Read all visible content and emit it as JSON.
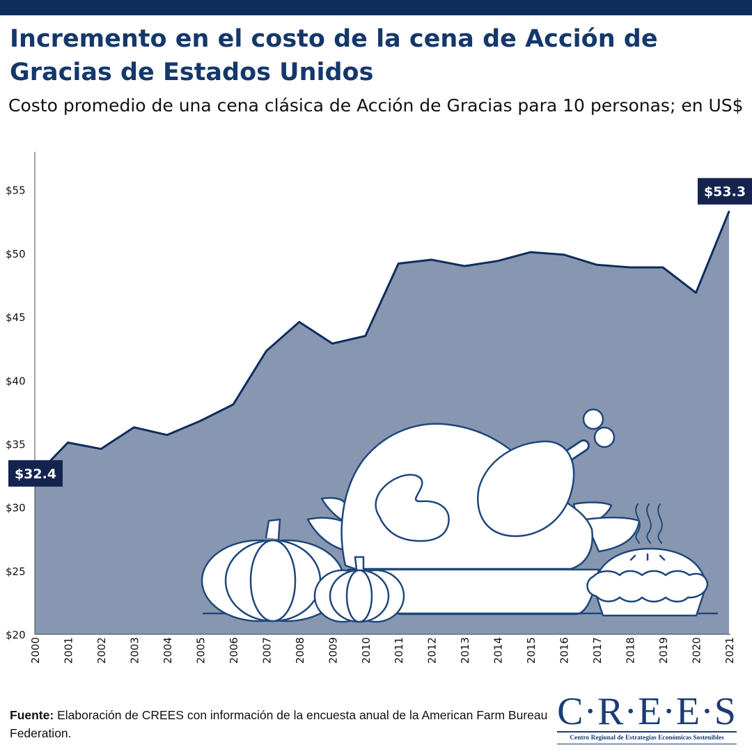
{
  "header": {
    "title": "Incremento en el costo de la cena de Acción de Gracias de Estados Unidos",
    "subtitle": "Costo promedio de una cena clásica de Acción de Gracias para 10 personas; en US$"
  },
  "chart_data": {
    "type": "area",
    "x": [
      "2000",
      "2001",
      "2002",
      "2003",
      "2004",
      "2005",
      "2006",
      "2007",
      "2008",
      "2009",
      "2010",
      "2011",
      "2012",
      "2013",
      "2014",
      "2015",
      "2016",
      "2017",
      "2018",
      "2019",
      "2020",
      "2021"
    ],
    "values": [
      32.4,
      35.1,
      34.6,
      36.3,
      35.7,
      36.8,
      38.1,
      42.3,
      44.6,
      42.9,
      43.5,
      49.2,
      49.5,
      49.0,
      49.4,
      50.1,
      49.9,
      49.1,
      48.9,
      48.9,
      46.9,
      53.3
    ],
    "ylim": [
      20,
      58
    ],
    "yticks": [
      20,
      25,
      30,
      35,
      40,
      45,
      50,
      55
    ],
    "ytick_labels": [
      "$20",
      "$25",
      "$30",
      "$35",
      "$40",
      "$45",
      "$50",
      "$55"
    ],
    "annotations": [
      {
        "label": "$32.4",
        "index": 0
      },
      {
        "label": "$53.3",
        "index": 21
      }
    ],
    "colors": {
      "fill": "#8797b1",
      "line": "#0f2d5c",
      "label_bg": "#15234f"
    },
    "grid": false
  },
  "footer": {
    "source_label": "Fuente:",
    "source_text": "Elaboración de CREES con información de la encuesta anual de la American Farm Bureau Federation."
  },
  "logo": {
    "word": "C·R·E·E·S",
    "tagline": "Centro Regional de Estrategias Económicas Sostenibles"
  }
}
